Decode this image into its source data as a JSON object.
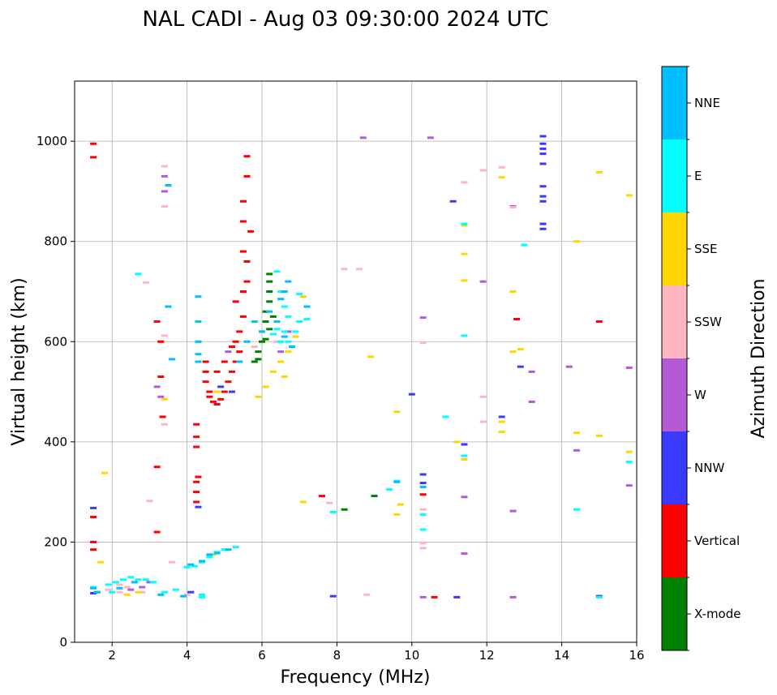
{
  "chart_data": {
    "type": "scatter",
    "title": "NAL CADI - Aug 03 09:30:00 2024 UTC",
    "xlabel": "Frequency (MHz)",
    "ylabel": "Virtual height (km)",
    "xlim": [
      1,
      16
    ],
    "ylim": [
      0,
      1120
    ],
    "xticks": [
      2,
      4,
      6,
      8,
      10,
      12,
      14,
      16
    ],
    "yticks": [
      0,
      200,
      400,
      600,
      800,
      1000
    ],
    "grid": true,
    "colorbar": {
      "title": "Azimuth Direction",
      "categories": [
        {
          "name": "X-mode",
          "color": "#008000"
        },
        {
          "name": "Vertical",
          "color": "#ff0000"
        },
        {
          "name": "NNW",
          "color": "#3a3aff"
        },
        {
          "name": "W",
          "color": "#b45ad6"
        },
        {
          "name": "SSW",
          "color": "#ffb6c1"
        },
        {
          "name": "SSE",
          "color": "#ffd700"
        },
        {
          "name": "E",
          "color": "#00ffff"
        },
        {
          "name": "NNE",
          "color": "#00bfff"
        }
      ]
    },
    "series": [
      {
        "name": "X-mode",
        "points": [
          [
            6.2,
            735
          ],
          [
            6.2,
            720
          ],
          [
            6.2,
            700
          ],
          [
            6.2,
            680
          ],
          [
            6.1,
            660
          ],
          [
            6.1,
            640
          ],
          [
            6.0,
            620
          ],
          [
            6.0,
            600
          ],
          [
            5.9,
            580
          ],
          [
            5.9,
            565
          ],
          [
            5.8,
            560
          ],
          [
            6.3,
            650
          ],
          [
            6.2,
            625
          ],
          [
            6.1,
            605
          ],
          [
            8.2,
            265
          ],
          [
            9.0,
            292
          ]
        ]
      },
      {
        "name": "Vertical",
        "points": [
          [
            1.5,
            995
          ],
          [
            1.5,
            968
          ],
          [
            1.5,
            250
          ],
          [
            1.5,
            200
          ],
          [
            1.5,
            185
          ],
          [
            1.6,
            100
          ],
          [
            4.25,
            435
          ],
          [
            4.25,
            410
          ],
          [
            4.25,
            390
          ],
          [
            4.25,
            320
          ],
          [
            4.25,
            300
          ],
          [
            4.25,
            280
          ],
          [
            4.3,
            330
          ],
          [
            4.5,
            560
          ],
          [
            4.5,
            540
          ],
          [
            4.5,
            520
          ],
          [
            4.6,
            490
          ],
          [
            4.7,
            480
          ],
          [
            4.8,
            475
          ],
          [
            4.9,
            485
          ],
          [
            5.0,
            500
          ],
          [
            5.1,
            520
          ],
          [
            5.2,
            540
          ],
          [
            5.3,
            560
          ],
          [
            5.4,
            580
          ],
          [
            5.3,
            600
          ],
          [
            5.4,
            620
          ],
          [
            5.5,
            650
          ],
          [
            5.5,
            700
          ],
          [
            5.6,
            720
          ],
          [
            5.5,
            780
          ],
          [
            5.5,
            840
          ],
          [
            5.5,
            880
          ],
          [
            5.6,
            930
          ],
          [
            5.6,
            970
          ],
          [
            5.3,
            680
          ],
          [
            5.2,
            590
          ],
          [
            5.0,
            560
          ],
          [
            4.8,
            540
          ],
          [
            3.2,
            640
          ],
          [
            3.3,
            530
          ],
          [
            3.35,
            450
          ],
          [
            3.2,
            350
          ],
          [
            3.2,
            220
          ],
          [
            3.3,
            600
          ],
          [
            7.6,
            292
          ],
          [
            10.3,
            295
          ],
          [
            10.6,
            90
          ],
          [
            12.8,
            645
          ],
          [
            15.0,
            640
          ],
          [
            4.6,
            500
          ],
          [
            5.6,
            760
          ],
          [
            5.7,
            820
          ]
        ]
      },
      {
        "name": "NNW",
        "points": [
          [
            1.5,
            268
          ],
          [
            1.5,
            98
          ],
          [
            13.5,
            1010
          ],
          [
            13.5,
            995
          ],
          [
            13.5,
            985
          ],
          [
            13.5,
            975
          ],
          [
            13.5,
            955
          ],
          [
            13.5,
            910
          ],
          [
            13.5,
            890
          ],
          [
            13.5,
            880
          ],
          [
            13.5,
            835
          ],
          [
            13.5,
            825
          ],
          [
            10.3,
            335
          ],
          [
            10.3,
            318
          ],
          [
            12.4,
            450
          ],
          [
            11.4,
            395
          ],
          [
            12.9,
            550
          ],
          [
            11.1,
            880
          ],
          [
            10.0,
            495
          ],
          [
            15.0,
            92
          ],
          [
            7.9,
            92
          ],
          [
            11.2,
            90
          ],
          [
            4.1,
            100
          ],
          [
            4.3,
            270
          ],
          [
            5.2,
            500
          ],
          [
            4.9,
            510
          ]
        ]
      },
      {
        "name": "W",
        "points": [
          [
            3.4,
            900
          ],
          [
            3.4,
            930
          ],
          [
            3.2,
            510
          ],
          [
            3.3,
            490
          ],
          [
            8.7,
            1007
          ],
          [
            10.5,
            1007
          ],
          [
            12.7,
            870
          ],
          [
            11.9,
            720
          ],
          [
            13.2,
            540
          ],
          [
            13.2,
            480
          ],
          [
            14.2,
            550
          ],
          [
            14.4,
            383
          ],
          [
            15.8,
            548
          ],
          [
            15.8,
            313
          ],
          [
            12.7,
            262
          ],
          [
            12.7,
            90
          ],
          [
            11.4,
            290
          ],
          [
            11.4,
            177
          ],
          [
            10.3,
            90
          ],
          [
            10.3,
            648
          ],
          [
            6.7,
            620
          ],
          [
            6.5,
            580
          ],
          [
            2.8,
            110
          ],
          [
            3.0,
            120
          ],
          [
            2.5,
            105
          ],
          [
            5.1,
            580
          ]
        ]
      },
      {
        "name": "SSW",
        "points": [
          [
            3.4,
            950
          ],
          [
            3.4,
            870
          ],
          [
            2.9,
            718
          ],
          [
            3.4,
            612
          ],
          [
            3.4,
            435
          ],
          [
            3.0,
            282
          ],
          [
            8.6,
            745
          ],
          [
            8.2,
            745
          ],
          [
            10.3,
            598
          ],
          [
            10.3,
            265
          ],
          [
            10.3,
            198
          ],
          [
            10.3,
            188
          ],
          [
            11.4,
            918
          ],
          [
            11.9,
            942
          ],
          [
            12.4,
            948
          ],
          [
            12.7,
            868
          ],
          [
            11.9,
            490
          ],
          [
            11.9,
            440
          ],
          [
            7.8,
            278
          ],
          [
            8.8,
            95
          ],
          [
            2.2,
            115
          ],
          [
            2.4,
            110
          ],
          [
            2.6,
            120
          ],
          [
            2.2,
            100
          ],
          [
            1.9,
            105
          ],
          [
            4.0,
            95
          ],
          [
            3.6,
            160
          ],
          [
            2.8,
            100
          ],
          [
            5.8,
            590
          ],
          [
            6.4,
            600
          ]
        ]
      },
      {
        "name": "SSE",
        "points": [
          [
            1.8,
            338
          ],
          [
            7.1,
            280
          ],
          [
            8.9,
            570
          ],
          [
            9.6,
            460
          ],
          [
            9.6,
            255
          ],
          [
            11.4,
            775
          ],
          [
            11.4,
            722
          ],
          [
            11.4,
            832
          ],
          [
            11.4,
            365
          ],
          [
            11.2,
            400
          ],
          [
            12.4,
            928
          ],
          [
            12.4,
            440
          ],
          [
            12.4,
            420
          ],
          [
            12.7,
            700
          ],
          [
            12.7,
            580
          ],
          [
            12.9,
            585
          ],
          [
            14.4,
            800
          ],
          [
            14.4,
            418
          ],
          [
            15.0,
            938
          ],
          [
            15.0,
            412
          ],
          [
            15.8,
            892
          ],
          [
            15.8,
            380
          ],
          [
            9.7,
            275
          ],
          [
            3.4,
            485
          ],
          [
            5.9,
            490
          ],
          [
            6.1,
            510
          ],
          [
            6.3,
            540
          ],
          [
            6.5,
            560
          ],
          [
            6.7,
            580
          ],
          [
            7.1,
            690
          ],
          [
            6.9,
            610
          ],
          [
            6.6,
            530
          ],
          [
            2.4,
            95
          ],
          [
            2.7,
            100
          ],
          [
            4.7,
            175
          ],
          [
            4.8,
            500
          ],
          [
            1.7,
            160
          ]
        ]
      },
      {
        "name": "E",
        "points": [
          [
            2.7,
            735
          ],
          [
            7.0,
            695
          ],
          [
            9.6,
            322
          ],
          [
            9.4,
            305
          ],
          [
            7.9,
            260
          ],
          [
            10.3,
            255
          ],
          [
            10.3,
            225
          ],
          [
            10.9,
            450
          ],
          [
            11.4,
            612
          ],
          [
            11.4,
            372
          ],
          [
            11.4,
            835
          ],
          [
            13.0,
            793
          ],
          [
            14.4,
            265
          ],
          [
            15.8,
            360
          ],
          [
            15.0,
            90
          ],
          [
            6.4,
            740
          ],
          [
            6.5,
            700
          ],
          [
            6.6,
            670
          ],
          [
            6.7,
            650
          ],
          [
            6.6,
            620
          ],
          [
            6.5,
            600
          ],
          [
            6.4,
            625
          ],
          [
            6.3,
            615
          ],
          [
            6.7,
            600
          ],
          [
            6.9,
            620
          ],
          [
            7.0,
            640
          ],
          [
            7.2,
            645
          ],
          [
            1.5,
            110
          ],
          [
            1.9,
            115
          ],
          [
            2.1,
            120
          ],
          [
            2.3,
            125
          ],
          [
            2.5,
            130
          ],
          [
            2.7,
            125
          ],
          [
            2.9,
            125
          ],
          [
            3.1,
            120
          ],
          [
            3.4,
            100
          ],
          [
            3.7,
            105
          ],
          [
            4.0,
            150
          ],
          [
            4.2,
            152
          ],
          [
            4.4,
            160
          ],
          [
            4.6,
            170
          ],
          [
            4.8,
            180
          ],
          [
            5.0,
            185
          ],
          [
            5.3,
            190
          ],
          [
            4.4,
            95
          ],
          [
            4.4,
            90
          ],
          [
            2.0,
            100
          ]
        ]
      },
      {
        "name": "NNE",
        "points": [
          [
            3.5,
            670
          ],
          [
            3.5,
            912
          ],
          [
            4.3,
            690
          ],
          [
            4.3,
            640
          ],
          [
            4.3,
            600
          ],
          [
            4.3,
            575
          ],
          [
            4.3,
            560
          ],
          [
            5.8,
            640
          ],
          [
            6.0,
            620
          ],
          [
            6.2,
            660
          ],
          [
            6.4,
            640
          ],
          [
            6.6,
            610
          ],
          [
            6.8,
            590
          ],
          [
            5.6,
            600
          ],
          [
            5.4,
            560
          ],
          [
            6.5,
            685
          ],
          [
            6.6,
            700
          ],
          [
            6.7,
            720
          ],
          [
            7.2,
            670
          ],
          [
            3.6,
            565
          ],
          [
            1.5,
            108
          ],
          [
            1.6,
            100
          ],
          [
            2.2,
            108
          ],
          [
            2.6,
            120
          ],
          [
            3.3,
            95
          ],
          [
            3.9,
            92
          ],
          [
            4.1,
            155
          ],
          [
            4.4,
            162
          ],
          [
            4.6,
            175
          ],
          [
            4.8,
            178
          ],
          [
            5.1,
            185
          ],
          [
            10.3,
            310
          ],
          [
            9.6,
            320
          ]
        ]
      }
    ]
  }
}
